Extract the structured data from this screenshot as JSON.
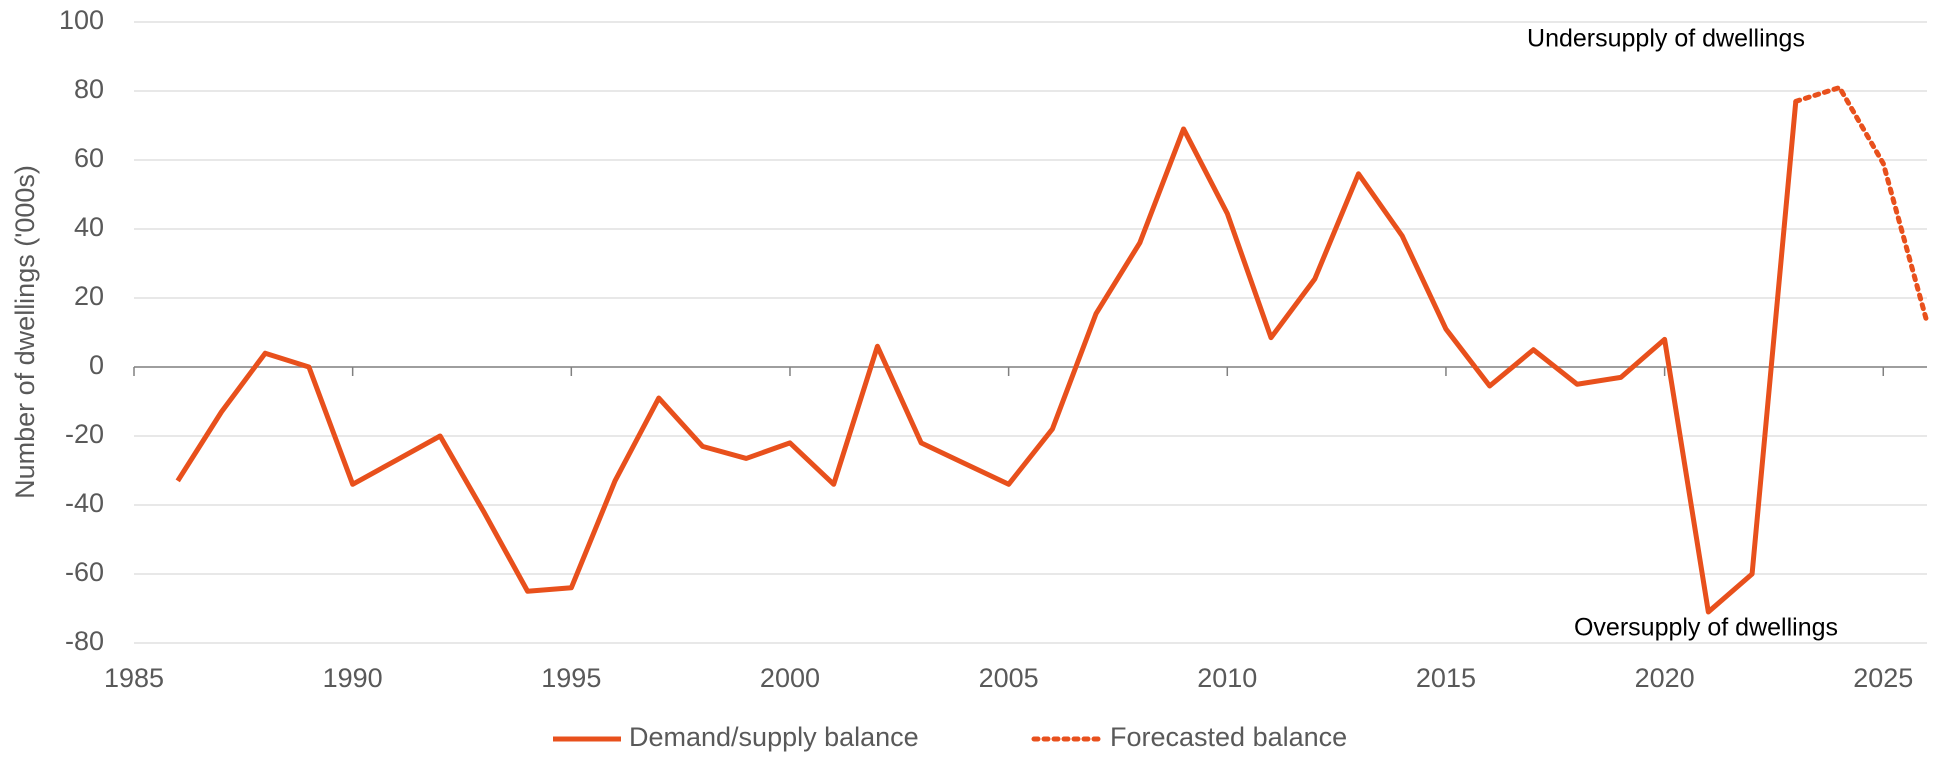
{
  "chart_data": {
    "type": "line",
    "y_label": "Number of dwellings ('000s)",
    "x": [
      1986,
      1987,
      1988,
      1989,
      1990,
      1991,
      1992,
      1993,
      1994,
      1995,
      1996,
      1997,
      1998,
      1999,
      2000,
      2001,
      2002,
      2003,
      2004,
      2005,
      2006,
      2007,
      2008,
      2009,
      2010,
      2011,
      2012,
      2013,
      2014,
      2015,
      2016,
      2017,
      2018,
      2019,
      2020,
      2021,
      2022,
      2023,
      2024,
      2025,
      2026
    ],
    "series": [
      {
        "name": "Demand/supply balance",
        "color": "#e8501c",
        "style": "solid",
        "values": [
          -33,
          -13,
          4,
          0,
          -34,
          -27,
          -20,
          -42,
          -65,
          -64,
          -33,
          -9,
          -23,
          -26.5,
          -22,
          -34,
          6,
          -22,
          -28,
          -34,
          -18,
          15.5,
          36,
          69,
          44.5,
          8.5,
          25.5,
          56,
          38,
          11,
          -5.5,
          5,
          -5,
          -3,
          8,
          -71,
          -60,
          77,
          null,
          null,
          null
        ]
      },
      {
        "name": "Forecasted balance",
        "color": "#e8501c",
        "style": "dotted",
        "values": [
          null,
          null,
          null,
          null,
          null,
          null,
          null,
          null,
          null,
          null,
          null,
          null,
          null,
          null,
          null,
          null,
          null,
          null,
          null,
          null,
          null,
          null,
          null,
          null,
          null,
          null,
          null,
          null,
          null,
          null,
          null,
          null,
          null,
          null,
          null,
          null,
          null,
          77,
          81,
          59,
          13
        ]
      }
    ],
    "annotations": [
      "Undersupply of dwellings",
      "Oversupply of dwellings"
    ],
    "xlim": [
      1985,
      2026
    ],
    "xticks": [
      1985,
      1990,
      1995,
      2000,
      2005,
      2010,
      2015,
      2020,
      2025
    ],
    "ylim": [
      -80,
      100
    ],
    "yticks": [
      -80,
      -60,
      -40,
      -20,
      0,
      20,
      40,
      60,
      80,
      100
    ],
    "grid": true
  }
}
